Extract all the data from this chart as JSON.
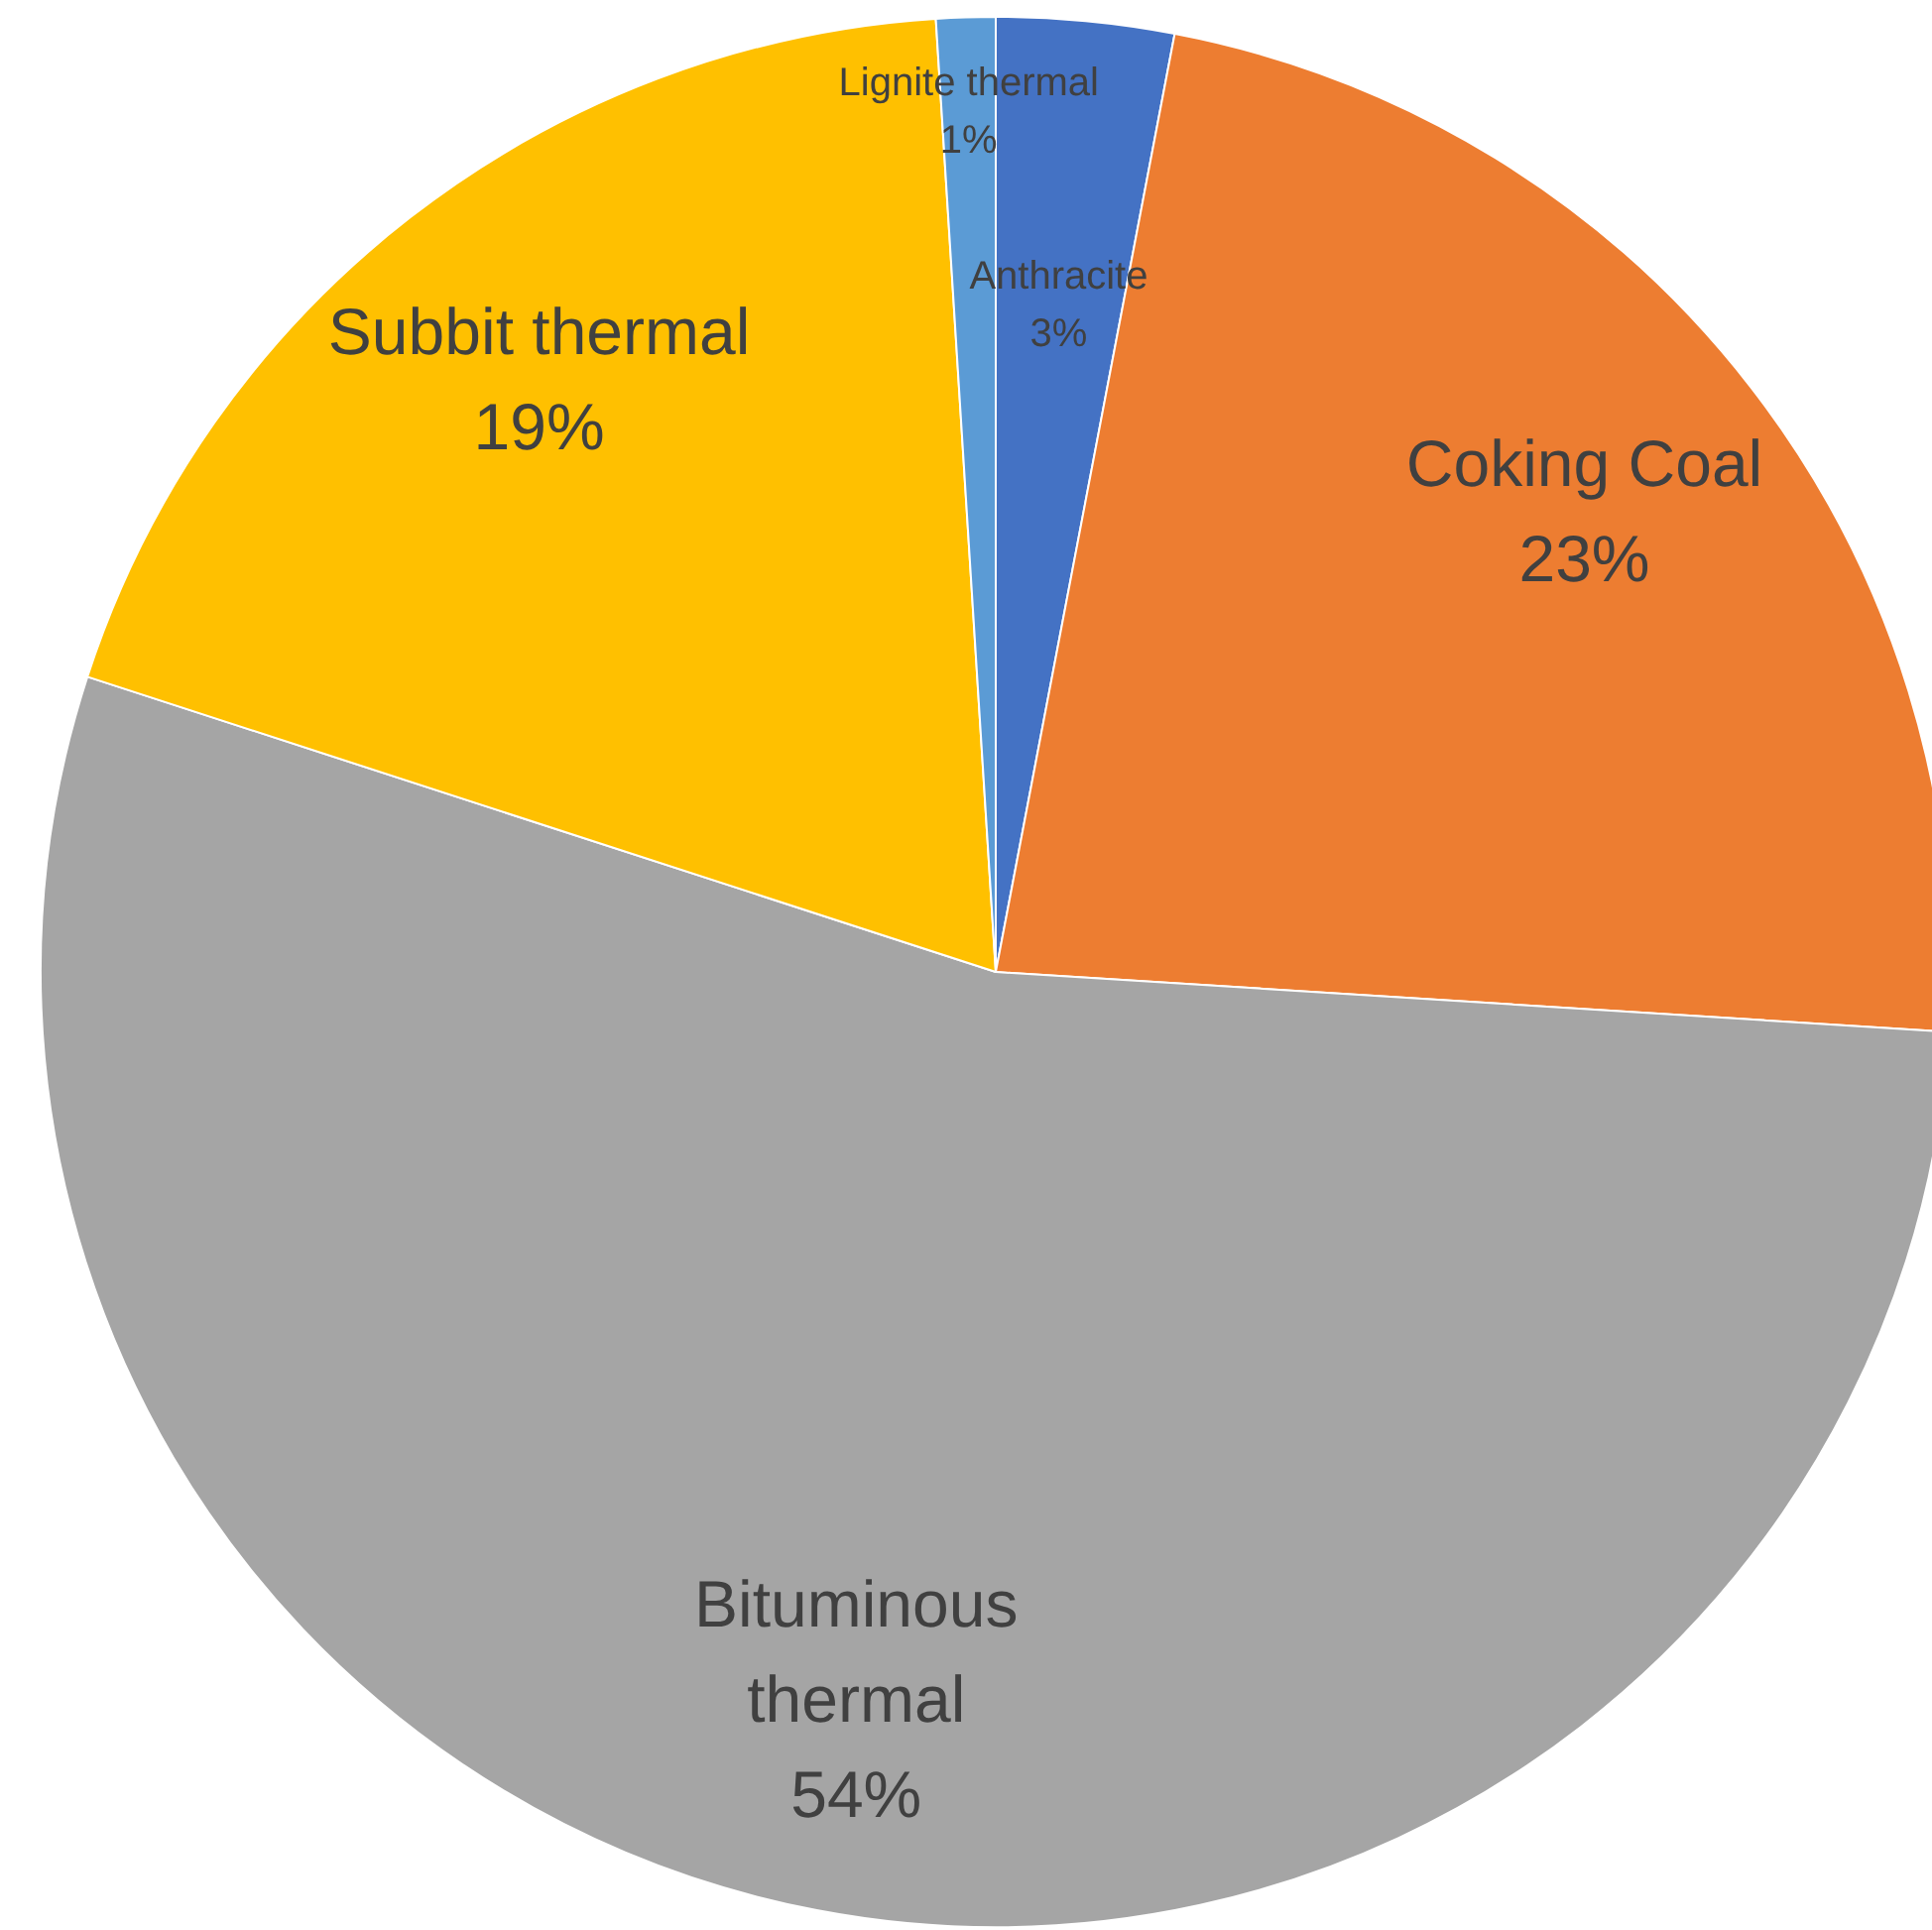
{
  "chart_data": {
    "type": "pie",
    "categories": [
      "Anthracite",
      "Coking Coal",
      "Bituminous thermal",
      "Subbit thermal",
      "Lignite thermal"
    ],
    "values": [
      3,
      23,
      54,
      19,
      1
    ],
    "colors": [
      "#4472c4",
      "#ed7d31",
      "#a5a5a5",
      "#ffc000",
      "#5b9bd5"
    ],
    "value_labels": [
      "3%",
      "23%",
      "54%",
      "19%",
      "1%"
    ],
    "legend": false
  }
}
